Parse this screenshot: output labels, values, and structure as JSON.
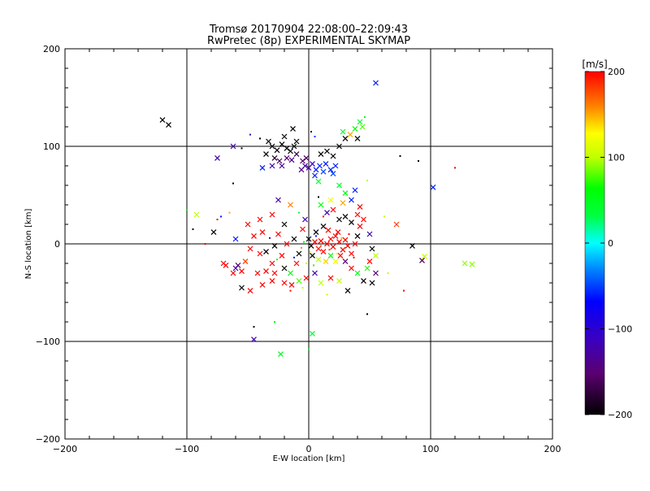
{
  "chart_data": {
    "type": "scatter",
    "title": "Tromsø 20170904 22:08:00–22:09:43",
    "subtitle": "RwPretec (8p) EXPERIMENTAL SKYMAP",
    "xlabel": "E-W location [km]",
    "ylabel": "N-S location [km]",
    "xlim": [
      -200,
      200
    ],
    "ylim": [
      -200,
      200
    ],
    "xticks": [
      -200,
      -100,
      0,
      100,
      200
    ],
    "yticks": [
      -200,
      -100,
      0,
      100,
      200
    ],
    "xtick_labels": [
      "−200",
      "−100",
      "0",
      "100",
      "200"
    ],
    "ytick_labels": [
      "−200",
      "−100",
      "0",
      "100",
      "200"
    ],
    "grid": true,
    "colorbar": {
      "unit": "[m/s]",
      "range": [
        -200,
        200
      ],
      "ticks": [
        200,
        100,
        0,
        -100,
        -200
      ],
      "tick_labels": [
        "200",
        "100",
        "0",
        "−100",
        "−200"
      ],
      "colormap": "rainbow (black-purple-blue-cyan-green-yellow-red)"
    },
    "points": [
      {
        "x": -120,
        "y": 127,
        "v": -200,
        "m": "x"
      },
      {
        "x": -115,
        "y": 122,
        "v": -200,
        "m": "x"
      },
      {
        "x": 55,
        "y": 165,
        "v": -60,
        "m": "x"
      },
      {
        "x": 102,
        "y": 58,
        "v": -60,
        "m": "x"
      },
      {
        "x": 128,
        "y": -20,
        "v": 90,
        "m": "x"
      },
      {
        "x": 134,
        "y": -21,
        "v": 90,
        "m": "x"
      },
      {
        "x": -45,
        "y": -98,
        "v": -120,
        "m": "x"
      },
      {
        "x": -45,
        "y": -85,
        "v": -200,
        "m": "."
      },
      {
        "x": 3,
        "y": -92,
        "v": 40,
        "m": "x"
      },
      {
        "x": -23,
        "y": -113,
        "v": 50,
        "m": "x"
      },
      {
        "x": 93,
        "y": -17,
        "v": -160,
        "m": "x"
      },
      {
        "x": 95,
        "y": -13,
        "v": 100,
        "m": "x"
      },
      {
        "x": 85,
        "y": -2,
        "v": -200,
        "m": "x"
      },
      {
        "x": 72,
        "y": 20,
        "v": 180,
        "m": "x"
      },
      {
        "x": 75,
        "y": 90,
        "v": -200,
        "m": "."
      },
      {
        "x": 90,
        "y": 85,
        "v": -200,
        "m": "."
      },
      {
        "x": 120,
        "y": 78,
        "v": 200,
        "m": "."
      },
      {
        "x": -92,
        "y": 30,
        "v": 100,
        "m": "x"
      },
      {
        "x": -95,
        "y": 15,
        "v": -200,
        "m": "."
      },
      {
        "x": -75,
        "y": 88,
        "v": -120,
        "m": "x"
      },
      {
        "x": -62,
        "y": 100,
        "v": -120,
        "m": "x"
      },
      {
        "x": -55,
        "y": 98,
        "v": -200,
        "m": "."
      },
      {
        "x": -70,
        "y": -20,
        "v": 200,
        "m": "x"
      },
      {
        "x": -68,
        "y": -22,
        "v": 200,
        "m": "x"
      },
      {
        "x": -58,
        "y": -22,
        "v": -150,
        "m": "x"
      },
      {
        "x": -52,
        "y": -18,
        "v": 180,
        "m": "x"
      },
      {
        "x": -55,
        "y": -28,
        "v": 200,
        "m": "x"
      },
      {
        "x": -78,
        "y": 12,
        "v": -200,
        "m": "x"
      },
      {
        "x": -85,
        "y": 0,
        "v": 200,
        "m": "."
      },
      {
        "x": -60,
        "y": 5,
        "v": -60,
        "m": "x"
      },
      {
        "x": -50,
        "y": 20,
        "v": 200,
        "m": "x"
      },
      {
        "x": -40,
        "y": 25,
        "v": 200,
        "m": "x"
      },
      {
        "x": -45,
        "y": 8,
        "v": 200,
        "m": "x"
      },
      {
        "x": -48,
        "y": -5,
        "v": 200,
        "m": "x"
      },
      {
        "x": -40,
        "y": -10,
        "v": 200,
        "m": "x"
      },
      {
        "x": -35,
        "y": -8,
        "v": -200,
        "m": "x"
      },
      {
        "x": -38,
        "y": 12,
        "v": 200,
        "m": "x"
      },
      {
        "x": -30,
        "y": 30,
        "v": 200,
        "m": "x"
      },
      {
        "x": -25,
        "y": 45,
        "v": -120,
        "m": "x"
      },
      {
        "x": -15,
        "y": 40,
        "v": 160,
        "m": "x"
      },
      {
        "x": -20,
        "y": 20,
        "v": -200,
        "m": "x"
      },
      {
        "x": -25,
        "y": 10,
        "v": 200,
        "m": "x"
      },
      {
        "x": -18,
        "y": 0,
        "v": 200,
        "m": "x"
      },
      {
        "x": -28,
        "y": -2,
        "v": -200,
        "m": "x"
      },
      {
        "x": -22,
        "y": -12,
        "v": 200,
        "m": "x"
      },
      {
        "x": -30,
        "y": -20,
        "v": 200,
        "m": "x"
      },
      {
        "x": -35,
        "y": -28,
        "v": 200,
        "m": "x"
      },
      {
        "x": -28,
        "y": -30,
        "v": 200,
        "m": "x"
      },
      {
        "x": -20,
        "y": -25,
        "v": -200,
        "m": "x"
      },
      {
        "x": -15,
        "y": -30,
        "v": 60,
        "m": "x"
      },
      {
        "x": -10,
        "y": -20,
        "v": 200,
        "m": "x"
      },
      {
        "x": -8,
        "y": -10,
        "v": -200,
        "m": "x"
      },
      {
        "x": -12,
        "y": 5,
        "v": -200,
        "m": "x"
      },
      {
        "x": -5,
        "y": 15,
        "v": 200,
        "m": "x"
      },
      {
        "x": -3,
        "y": 25,
        "v": -120,
        "m": "x"
      },
      {
        "x": 0,
        "y": 5,
        "v": -200,
        "m": "x"
      },
      {
        "x": 2,
        "y": -2,
        "v": -200,
        "m": "x"
      },
      {
        "x": 5,
        "y": 2,
        "v": 200,
        "m": "x"
      },
      {
        "x": 8,
        "y": -5,
        "v": 200,
        "m": "x"
      },
      {
        "x": 10,
        "y": 3,
        "v": 200,
        "m": "x"
      },
      {
        "x": 12,
        "y": -8,
        "v": 200,
        "m": "x"
      },
      {
        "x": 15,
        "y": 0,
        "v": 200,
        "m": "x"
      },
      {
        "x": 18,
        "y": 5,
        "v": 200,
        "m": "x"
      },
      {
        "x": 20,
        "y": -3,
        "v": 200,
        "m": "x"
      },
      {
        "x": 22,
        "y": 8,
        "v": 200,
        "m": "x"
      },
      {
        "x": 25,
        "y": 2,
        "v": 200,
        "m": "x"
      },
      {
        "x": 28,
        "y": -6,
        "v": 200,
        "m": "x"
      },
      {
        "x": 30,
        "y": 4,
        "v": 200,
        "m": "x"
      },
      {
        "x": 32,
        "y": -2,
        "v": 200,
        "m": "x"
      },
      {
        "x": 24,
        "y": 12,
        "v": 200,
        "m": "x"
      },
      {
        "x": 16,
        "y": 14,
        "v": 200,
        "m": "x"
      },
      {
        "x": 12,
        "y": 18,
        "v": -200,
        "m": "x"
      },
      {
        "x": 6,
        "y": 12,
        "v": -200,
        "m": "x"
      },
      {
        "x": 3,
        "y": -12,
        "v": -200,
        "m": "x"
      },
      {
        "x": 8,
        "y": -16,
        "v": 100,
        "m": "x"
      },
      {
        "x": 14,
        "y": -18,
        "v": 140,
        "m": "x"
      },
      {
        "x": 18,
        "y": -12,
        "v": 60,
        "m": "x"
      },
      {
        "x": 22,
        "y": -18,
        "v": 120,
        "m": "x"
      },
      {
        "x": 26,
        "y": -12,
        "v": 200,
        "m": "x"
      },
      {
        "x": 30,
        "y": -18,
        "v": -150,
        "m": "x"
      },
      {
        "x": 35,
        "y": -10,
        "v": 200,
        "m": "x"
      },
      {
        "x": 38,
        "y": 0,
        "v": 200,
        "m": "x"
      },
      {
        "x": 40,
        "y": 8,
        "v": -200,
        "m": "x"
      },
      {
        "x": 42,
        "y": 18,
        "v": 200,
        "m": "x"
      },
      {
        "x": 45,
        "y": 25,
        "v": 200,
        "m": "x"
      },
      {
        "x": 40,
        "y": 30,
        "v": 200,
        "m": "x"
      },
      {
        "x": 35,
        "y": 22,
        "v": -200,
        "m": "x"
      },
      {
        "x": 30,
        "y": 28,
        "v": -200,
        "m": "x"
      },
      {
        "x": 25,
        "y": 25,
        "v": -200,
        "m": "x"
      },
      {
        "x": 20,
        "y": 35,
        "v": 200,
        "m": "x"
      },
      {
        "x": 15,
        "y": 32,
        "v": -120,
        "m": "x"
      },
      {
        "x": 10,
        "y": 40,
        "v": 60,
        "m": "x"
      },
      {
        "x": 18,
        "y": 45,
        "v": 120,
        "m": "x"
      },
      {
        "x": 28,
        "y": 42,
        "v": 150,
        "m": "x"
      },
      {
        "x": 35,
        "y": 45,
        "v": -60,
        "m": "x"
      },
      {
        "x": 42,
        "y": 38,
        "v": 200,
        "m": "x"
      },
      {
        "x": 50,
        "y": 10,
        "v": -120,
        "m": "x"
      },
      {
        "x": 52,
        "y": -5,
        "v": -200,
        "m": "x"
      },
      {
        "x": 55,
        "y": -12,
        "v": 100,
        "m": "x"
      },
      {
        "x": 50,
        "y": -18,
        "v": 200,
        "m": "x"
      },
      {
        "x": 48,
        "y": -25,
        "v": 70,
        "m": "x"
      },
      {
        "x": 55,
        "y": -30,
        "v": -150,
        "m": "x"
      },
      {
        "x": 52,
        "y": -40,
        "v": -200,
        "m": "x"
      },
      {
        "x": 45,
        "y": -38,
        "v": -200,
        "m": "x"
      },
      {
        "x": 40,
        "y": -30,
        "v": 60,
        "m": "x"
      },
      {
        "x": 35,
        "y": -25,
        "v": 200,
        "m": "x"
      },
      {
        "x": 32,
        "y": -48,
        "v": -200,
        "m": "x"
      },
      {
        "x": 25,
        "y": -38,
        "v": 100,
        "m": "x"
      },
      {
        "x": 18,
        "y": -35,
        "v": 200,
        "m": "x"
      },
      {
        "x": 10,
        "y": -40,
        "v": 100,
        "m": "x"
      },
      {
        "x": 5,
        "y": -30,
        "v": -120,
        "m": "x"
      },
      {
        "x": -2,
        "y": -35,
        "v": 200,
        "m": "x"
      },
      {
        "x": -8,
        "y": -38,
        "v": 80,
        "m": "x"
      },
      {
        "x": -14,
        "y": -42,
        "v": 200,
        "m": "x"
      },
      {
        "x": -20,
        "y": -40,
        "v": 200,
        "m": "x"
      },
      {
        "x": -30,
        "y": -38,
        "v": 200,
        "m": "x"
      },
      {
        "x": -38,
        "y": -42,
        "v": 200,
        "m": "x"
      },
      {
        "x": -42,
        "y": -30,
        "v": 200,
        "m": "x"
      },
      {
        "x": -60,
        "y": -25,
        "v": -120,
        "m": "x"
      },
      {
        "x": -62,
        "y": -30,
        "v": 200,
        "m": "x"
      },
      {
        "x": -55,
        "y": -45,
        "v": -200,
        "m": "x"
      },
      {
        "x": -48,
        "y": -48,
        "v": 200,
        "m": "x"
      },
      {
        "x": -30,
        "y": 100,
        "v": -200,
        "m": "x"
      },
      {
        "x": -26,
        "y": 96,
        "v": -200,
        "m": "x"
      },
      {
        "x": -22,
        "y": 102,
        "v": -200,
        "m": "x"
      },
      {
        "x": -18,
        "y": 98,
        "v": -200,
        "m": "x"
      },
      {
        "x": -15,
        "y": 95,
        "v": -200,
        "m": "x"
      },
      {
        "x": -12,
        "y": 100,
        "v": -200,
        "m": "x"
      },
      {
        "x": -20,
        "y": 110,
        "v": -200,
        "m": "x"
      },
      {
        "x": -10,
        "y": 105,
        "v": -200,
        "m": "x"
      },
      {
        "x": -33,
        "y": 105,
        "v": -200,
        "m": "x"
      },
      {
        "x": -35,
        "y": 92,
        "v": -200,
        "m": "x"
      },
      {
        "x": -28,
        "y": 88,
        "v": -180,
        "m": "x"
      },
      {
        "x": -24,
        "y": 85,
        "v": -160,
        "m": "x"
      },
      {
        "x": -18,
        "y": 88,
        "v": -150,
        "m": "x"
      },
      {
        "x": -14,
        "y": 86,
        "v": -140,
        "m": "x"
      },
      {
        "x": -22,
        "y": 80,
        "v": -130,
        "m": "x"
      },
      {
        "x": -30,
        "y": 80,
        "v": -120,
        "m": "x"
      },
      {
        "x": -38,
        "y": 78,
        "v": -60,
        "m": "x"
      },
      {
        "x": -10,
        "y": 92,
        "v": -170,
        "m": "x"
      },
      {
        "x": -13,
        "y": 118,
        "v": -200,
        "m": "x"
      },
      {
        "x": -5,
        "y": 85,
        "v": -150,
        "m": "x"
      },
      {
        "x": -3,
        "y": 80,
        "v": -130,
        "m": "x"
      },
      {
        "x": -6,
        "y": 76,
        "v": -140,
        "m": "x"
      },
      {
        "x": -2,
        "y": 88,
        "v": -160,
        "m": "x"
      },
      {
        "x": 0,
        "y": 78,
        "v": -120,
        "m": "x"
      },
      {
        "x": 3,
        "y": 82,
        "v": -110,
        "m": "x"
      },
      {
        "x": 6,
        "y": 76,
        "v": -60,
        "m": "x"
      },
      {
        "x": 9,
        "y": 80,
        "v": -60,
        "m": "x"
      },
      {
        "x": 12,
        "y": 74,
        "v": -50,
        "m": "x"
      },
      {
        "x": 14,
        "y": 82,
        "v": -60,
        "m": "x"
      },
      {
        "x": 18,
        "y": 76,
        "v": -60,
        "m": "x"
      },
      {
        "x": 20,
        "y": 72,
        "v": -50,
        "m": "x"
      },
      {
        "x": 22,
        "y": 80,
        "v": -60,
        "m": "x"
      },
      {
        "x": 5,
        "y": 70,
        "v": -60,
        "m": "x"
      },
      {
        "x": 10,
        "y": 92,
        "v": -200,
        "m": "x"
      },
      {
        "x": 15,
        "y": 95,
        "v": -200,
        "m": "x"
      },
      {
        "x": 20,
        "y": 90,
        "v": -200,
        "m": "x"
      },
      {
        "x": 25,
        "y": 100,
        "v": -200,
        "m": "x"
      },
      {
        "x": 30,
        "y": 108,
        "v": -200,
        "m": "x"
      },
      {
        "x": 28,
        "y": 115,
        "v": 40,
        "m": "x"
      },
      {
        "x": 34,
        "y": 112,
        "v": 150,
        "m": "x"
      },
      {
        "x": 38,
        "y": 118,
        "v": 60,
        "m": "x"
      },
      {
        "x": 40,
        "y": 108,
        "v": -200,
        "m": "x"
      },
      {
        "x": 42,
        "y": 125,
        "v": 40,
        "m": "x"
      },
      {
        "x": 44,
        "y": 120,
        "v": 80,
        "m": "x"
      },
      {
        "x": 25,
        "y": 60,
        "v": 40,
        "m": "x"
      },
      {
        "x": 30,
        "y": 52,
        "v": 60,
        "m": "x"
      },
      {
        "x": 38,
        "y": 55,
        "v": -60,
        "m": "x"
      },
      {
        "x": 8,
        "y": 64,
        "v": 40,
        "m": "x"
      },
      {
        "x": 5,
        "y": 110,
        "v": -50,
        "m": "."
      },
      {
        "x": 2,
        "y": 115,
        "v": -200,
        "m": "."
      },
      {
        "x": -40,
        "y": 108,
        "v": -200,
        "m": "."
      },
      {
        "x": -48,
        "y": 112,
        "v": -120,
        "m": "."
      },
      {
        "x": 46,
        "y": 130,
        "v": 40,
        "m": "."
      },
      {
        "x": 48,
        "y": 65,
        "v": 100,
        "m": "."
      },
      {
        "x": -28,
        "y": -80,
        "v": 60,
        "m": "."
      },
      {
        "x": 0,
        "y": -108,
        "v": 40,
        "m": "."
      },
      {
        "x": 48,
        "y": -72,
        "v": -200,
        "m": "."
      },
      {
        "x": 78,
        "y": -48,
        "v": 200,
        "m": "."
      },
      {
        "x": -62,
        "y": 62,
        "v": -200,
        "m": "."
      },
      {
        "x": -65,
        "y": 32,
        "v": 150,
        "m": "."
      },
      {
        "x": -72,
        "y": 28,
        "v": -60,
        "m": "."
      },
      {
        "x": -100,
        "y": 35,
        "v": 60,
        "m": "."
      },
      {
        "x": -75,
        "y": 25,
        "v": 200,
        "m": "."
      },
      {
        "x": 62,
        "y": 28,
        "v": 100,
        "m": "."
      },
      {
        "x": 65,
        "y": -30,
        "v": 100,
        "m": "."
      },
      {
        "x": -5,
        "y": -45,
        "v": 100,
        "m": "."
      },
      {
        "x": 15,
        "y": -52,
        "v": 100,
        "m": "."
      },
      {
        "x": -15,
        "y": -48,
        "v": 200,
        "m": "."
      },
      {
        "x": 8,
        "y": 48,
        "v": -200,
        "m": "."
      },
      {
        "x": -8,
        "y": 32,
        "v": 40,
        "m": "."
      },
      {
        "x": 12,
        "y": 28,
        "v": 200,
        "m": "."
      },
      {
        "x": -2,
        "y": -20,
        "v": 100,
        "m": "."
      },
      {
        "x": 4,
        "y": -22,
        "v": 60,
        "m": "."
      },
      {
        "x": 6,
        "y": 8,
        "v": -60,
        "m": "."
      },
      {
        "x": -4,
        "y": 2,
        "v": 60,
        "m": "."
      },
      {
        "x": 1,
        "y": -8,
        "v": 120,
        "m": "."
      },
      {
        "x": 10,
        "y": -2,
        "v": 160,
        "m": "."
      },
      {
        "x": 17,
        "y": -6,
        "v": 180,
        "m": "."
      },
      {
        "x": 23,
        "y": -10,
        "v": 120,
        "m": "."
      },
      {
        "x": 27,
        "y": 6,
        "v": 150,
        "m": "."
      },
      {
        "x": 33,
        "y": 10,
        "v": 200,
        "m": "."
      },
      {
        "x": 37,
        "y": -14,
        "v": 200,
        "m": "."
      },
      {
        "x": -32,
        "y": 6,
        "v": -120,
        "m": "."
      },
      {
        "x": -26,
        "y": -16,
        "v": 60,
        "m": "."
      },
      {
        "x": -12,
        "y": -14,
        "v": -60,
        "m": "."
      },
      {
        "x": -6,
        "y": -4,
        "v": 160,
        "m": "."
      }
    ]
  }
}
